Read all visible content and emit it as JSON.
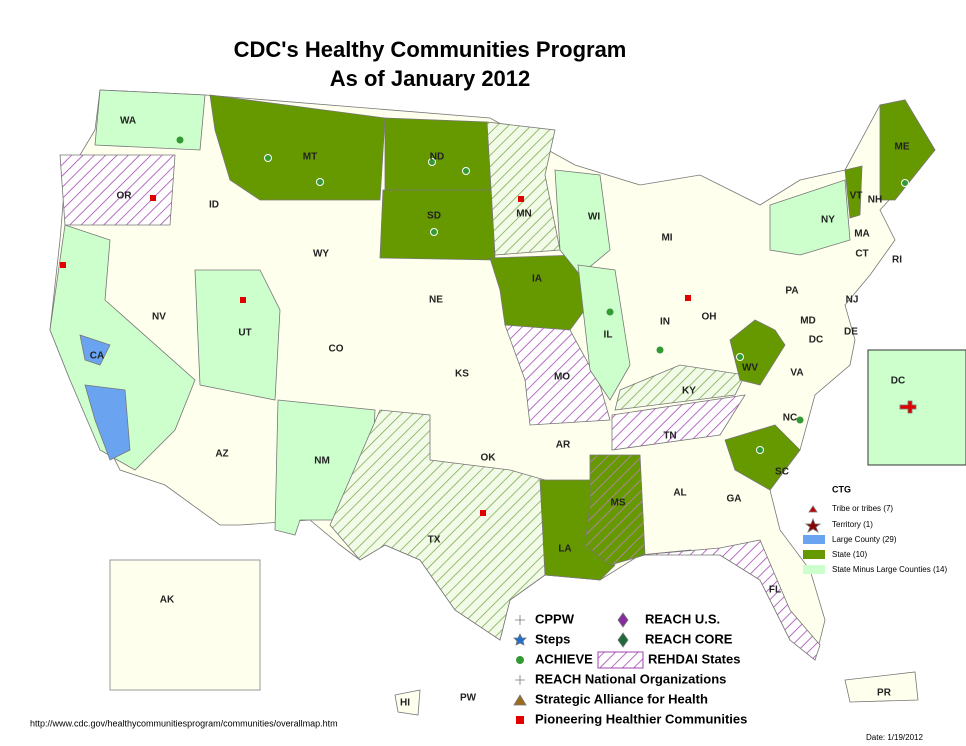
{
  "header": {
    "title_line1": "CDC's Healthy Communities Program",
    "title_line2": "As of January 2012"
  },
  "states": [
    "WA",
    "OR",
    "CA",
    "NV",
    "ID",
    "MT",
    "WY",
    "UT",
    "AZ",
    "CO",
    "NM",
    "ND",
    "SD",
    "NE",
    "KS",
    "OK",
    "TX",
    "MN",
    "IA",
    "MO",
    "AR",
    "LA",
    "WI",
    "IL",
    "MI",
    "IN",
    "OH",
    "KY",
    "TN",
    "MS",
    "AL",
    "GA",
    "FL",
    "SC",
    "NC",
    "VA",
    "WV",
    "PA",
    "NY",
    "VT",
    "NH",
    "ME",
    "MA",
    "CT",
    "RI",
    "NJ",
    "DE",
    "MD",
    "DC"
  ],
  "insets": {
    "dc": "DC",
    "ak": "AK",
    "hi": "HI",
    "pr": "PR",
    "pw": "PW"
  },
  "ctg_legend": {
    "title": "CTG",
    "items": [
      "Tribe or tribes (7)",
      "Territory (1)",
      "Large County (29)",
      "State (10)",
      "State Minus Large Counties (14)"
    ]
  },
  "legend": {
    "items": [
      "CPPW",
      "Steps",
      "ACHIEVE",
      "REACH National Organizations",
      "Strategic Alliance for Health",
      "Pioneering Healthier Communities",
      "REACH U.S.",
      "REACH CORE",
      "REHDAI States"
    ]
  },
  "footer": {
    "url": "http://www.cdc.gov/healthycommunitiesprogram/communities/overallmap.htm",
    "date": "Date: 1/19/2012"
  }
}
